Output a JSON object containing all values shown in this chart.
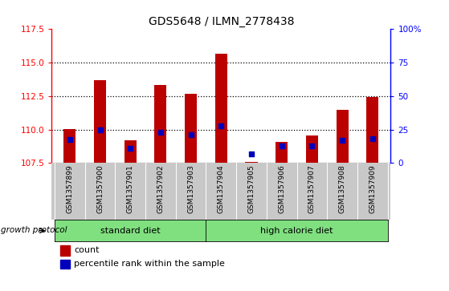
{
  "title": "GDS5648 / ILMN_2778438",
  "samples": [
    "GSM1357899",
    "GSM1357900",
    "GSM1357901",
    "GSM1357902",
    "GSM1357903",
    "GSM1357904",
    "GSM1357905",
    "GSM1357906",
    "GSM1357907",
    "GSM1357908",
    "GSM1357909"
  ],
  "red_bar_tops": [
    110.05,
    113.7,
    109.2,
    113.35,
    112.65,
    115.65,
    107.6,
    109.1,
    109.55,
    111.45,
    112.4
  ],
  "blue_dot_values": [
    109.28,
    110.0,
    108.58,
    109.78,
    109.6,
    110.3,
    108.15,
    108.75,
    108.75,
    109.2,
    109.3
  ],
  "ymin": 107.5,
  "ymax": 117.5,
  "yticks_left": [
    107.5,
    110.0,
    112.5,
    115.0,
    117.5
  ],
  "yticks_right": [
    0,
    25,
    50,
    75,
    100
  ],
  "right_ymin": 0,
  "right_ymax": 100,
  "bar_color": "#bb0000",
  "blue_color": "#0000bb",
  "bar_width": 0.4,
  "group1_label": "standard diet",
  "group2_label": "high calorie diet",
  "group1_end_idx": 4,
  "group2_start_idx": 5,
  "growth_protocol_label": "growth protocol",
  "group_bg_color": "#80e080",
  "tick_label_bg": "#c8c8c8",
  "legend_count_label": "count",
  "legend_percentile_label": "percentile rank within the sample",
  "xlim_left": -0.6,
  "xlim_right": 10.6
}
